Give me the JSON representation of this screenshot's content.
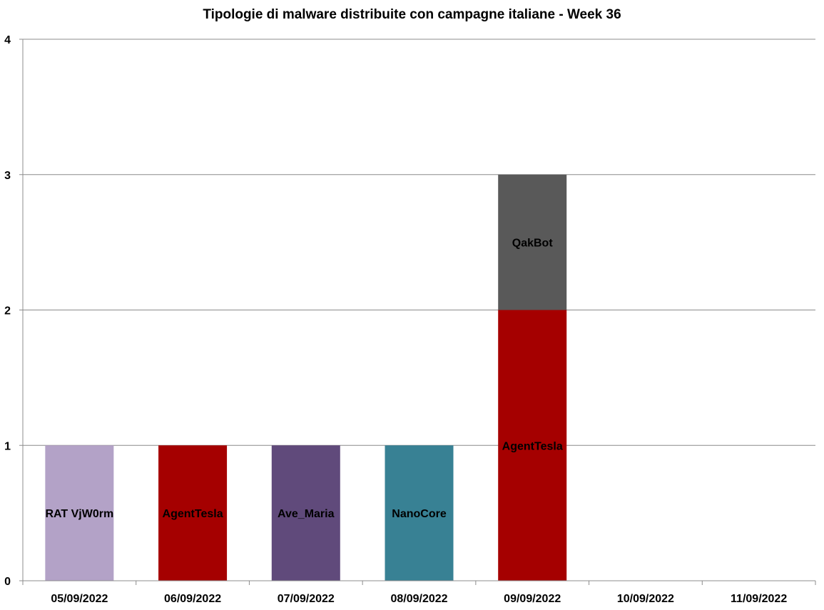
{
  "chart_data": {
    "type": "bar",
    "stacked": true,
    "title": "Tipologie  di malware distribuite con campagne italiane - Week 36",
    "xlabel": "",
    "ylabel": "",
    "ylim": [
      0,
      4
    ],
    "yticks": [
      "0",
      "1",
      "2",
      "3",
      "4"
    ],
    "grid": true,
    "categories": [
      "05/09/2022",
      "06/09/2022",
      "07/09/2022",
      "08/09/2022",
      "09/09/2022",
      "10/09/2022",
      "11/09/2022"
    ],
    "stacks": [
      [
        {
          "label": "RAT VjW0rm",
          "value": 1,
          "color": "#B3A2C7"
        }
      ],
      [
        {
          "label": "AgentTesla",
          "value": 1,
          "color": "#A50000"
        }
      ],
      [
        {
          "label": "Ave_Maria",
          "value": 1,
          "color": "#604A7B"
        }
      ],
      [
        {
          "label": "NanoCore",
          "value": 1,
          "color": "#388194"
        }
      ],
      [
        {
          "label": "AgentTesla",
          "value": 2,
          "color": "#A50000"
        },
        {
          "label": "QakBot",
          "value": 1,
          "color": "#595959"
        }
      ],
      [],
      []
    ]
  }
}
